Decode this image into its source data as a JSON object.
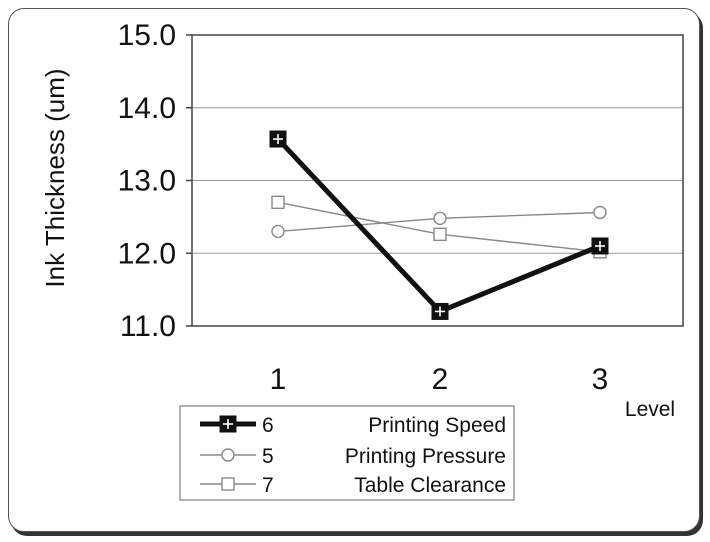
{
  "chart_data": {
    "type": "line",
    "title": "",
    "xlabel": "Level",
    "ylabel": "Ink Thickness (um)",
    "categories": [
      "1",
      "2",
      "3"
    ],
    "ylim": [
      11.0,
      15.0
    ],
    "yticks": [
      "11.0",
      "12.0",
      "13.0",
      "14.0",
      "15.0"
    ],
    "grid": "horizontal",
    "legend_position": "bottom",
    "series": [
      {
        "name": "Printing Speed",
        "code": "6",
        "marker": "square-plus",
        "color": "#111111",
        "values": [
          13.57,
          11.2,
          12.1
        ]
      },
      {
        "name": "Printing Pressure",
        "code": "5",
        "marker": "circle",
        "color": "#888888",
        "values": [
          12.3,
          12.48,
          12.56
        ]
      },
      {
        "name": "Table Clearance",
        "code": "7",
        "marker": "square",
        "color": "#888888",
        "values": [
          12.7,
          12.26,
          12.02
        ]
      }
    ]
  }
}
